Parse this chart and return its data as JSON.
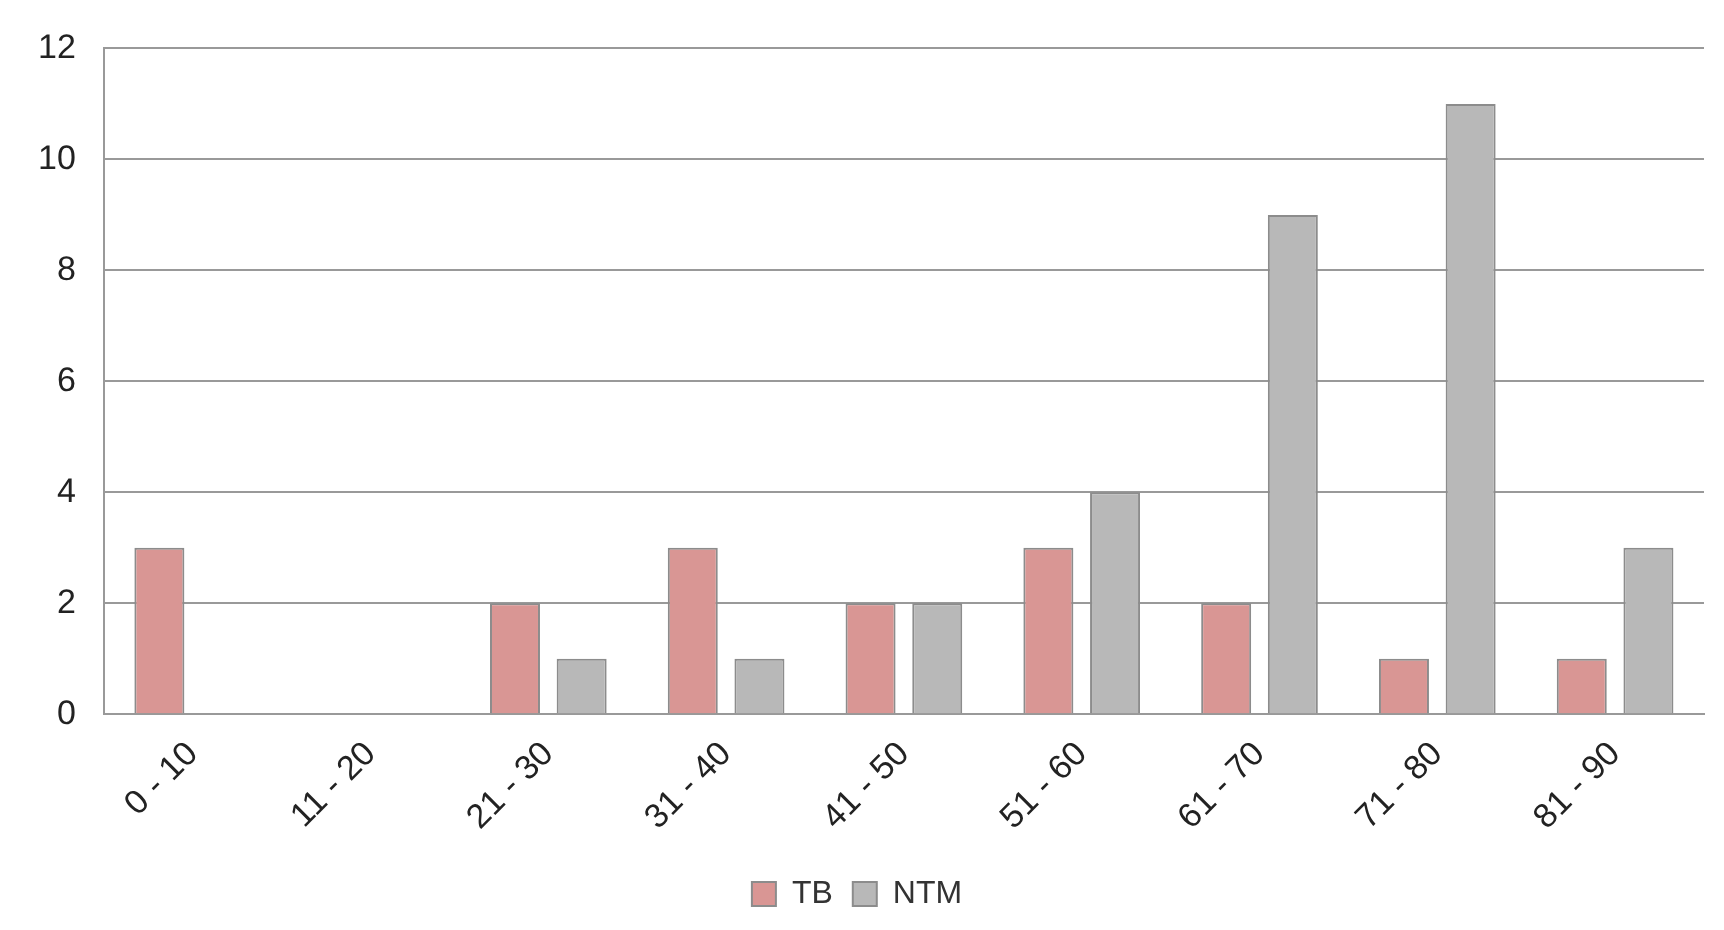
{
  "chart_data": {
    "type": "bar",
    "categories": [
      "0 - 10",
      "11 - 20",
      "21 - 30",
      "31 - 40",
      "41 - 50",
      "51 - 60",
      "61 - 70",
      "71 - 80",
      "81 - 90"
    ],
    "series": [
      {
        "name": "TB",
        "color": "#d99694",
        "values": [
          3,
          0,
          2,
          3,
          2,
          3,
          2,
          1,
          1
        ]
      },
      {
        "name": "NTM",
        "color": "#b8b8b8",
        "values": [
          0,
          0,
          1,
          1,
          2,
          4,
          9,
          11,
          3
        ]
      }
    ],
    "ylim": [
      0,
      12
    ],
    "yticks": [
      0,
      2,
      4,
      6,
      8,
      10,
      12
    ],
    "grid": "y",
    "legend": "bottom"
  }
}
